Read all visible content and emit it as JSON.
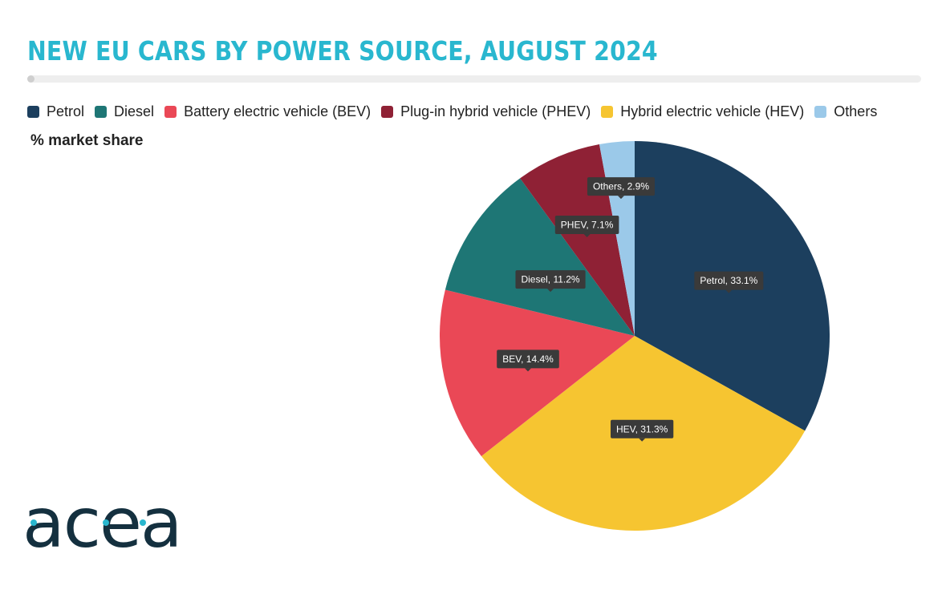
{
  "title": "NEW EU CARS BY POWER SOURCE, AUGUST 2024",
  "subtitle": "% market share",
  "brand": {
    "name": "acea",
    "color_dark": "#14303f",
    "color_accent": "#29b7cf"
  },
  "legend": [
    {
      "label": "Petrol",
      "color": "#1c3f5e"
    },
    {
      "label": "Diesel",
      "color": "#1e7675"
    },
    {
      "label": "Battery electric vehicle (BEV)",
      "color": "#ea4856"
    },
    {
      "label": "Plug-in hybrid vehicle (PHEV)",
      "color": "#8f2135"
    },
    {
      "label": "Hybrid electric vehicle (HEV)",
      "color": "#f6c531"
    },
    {
      "label": "Others",
      "color": "#9bc9e9"
    }
  ],
  "chart_data": {
    "type": "pie",
    "slices": [
      {
        "name": "Petrol",
        "value": 33.1,
        "data_label": "Petrol, 33.1%",
        "color": "#1c3f5e"
      },
      {
        "name": "HEV",
        "value": 31.3,
        "data_label": "HEV, 31.3%",
        "color": "#f6c531"
      },
      {
        "name": "BEV",
        "value": 14.4,
        "data_label": "BEV, 14.4%",
        "color": "#ea4856"
      },
      {
        "name": "Diesel",
        "value": 11.2,
        "data_label": "Diesel, 11.2%",
        "color": "#1e7675"
      },
      {
        "name": "PHEV",
        "value": 7.1,
        "data_label": "PHEV, 7.1%",
        "color": "#8f2135"
      },
      {
        "name": "Others",
        "value": 2.9,
        "data_label": "Others, 2.9%",
        "color": "#9bc9e9"
      }
    ],
    "start": "12 o'clock",
    "direction": "clockwise",
    "legend_position": "top"
  }
}
